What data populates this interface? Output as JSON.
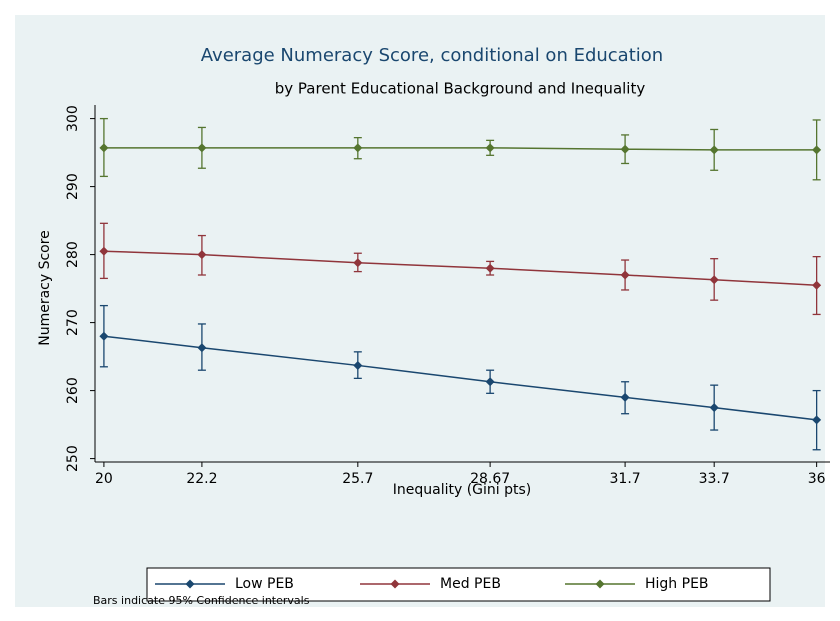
{
  "chart_data": {
    "type": "line",
    "title": "Average Numeracy Score, conditional on Education",
    "subtitle": "by Parent Educational Background and Inequality",
    "x_label": "Inequality (Gini pts)",
    "y_label": "Numeracy Score",
    "note": "Bars indicate 95% Confidence intervals",
    "x": [
      20,
      22.2,
      25.7,
      28.67,
      31.7,
      33.7,
      36
    ],
    "xlim": [
      19.8,
      36.3
    ],
    "xticks": [
      20,
      22.2,
      25.7,
      28.67,
      31.7,
      33.7,
      36
    ],
    "ylim": [
      249.5,
      302
    ],
    "yticks": [
      250,
      260,
      270,
      280,
      290,
      300
    ],
    "grid": false,
    "series": [
      {
        "name": "Low PEB",
        "color": "#1a476f",
        "values": [
          268,
          266.3,
          263.7,
          261.3,
          259,
          257.5,
          255.7
        ],
        "ci_low": [
          263.5,
          263,
          261.8,
          259.6,
          256.6,
          254.2,
          251.3
        ],
        "ci_high": [
          272.5,
          269.8,
          265.7,
          263,
          261.3,
          260.8,
          260
        ]
      },
      {
        "name": "Med PEB",
        "color": "#90353b",
        "values": [
          280.5,
          280,
          278.8,
          278,
          277,
          276.3,
          275.5
        ],
        "ci_low": [
          276.5,
          277,
          277.5,
          277,
          274.8,
          273.3,
          271.2
        ],
        "ci_high": [
          284.6,
          282.8,
          280.2,
          279,
          279.2,
          279.4,
          279.7
        ]
      },
      {
        "name": "High PEB",
        "color": "#55752f",
        "values": [
          295.7,
          295.7,
          295.7,
          295.7,
          295.5,
          295.4,
          295.4
        ],
        "ci_low": [
          291.5,
          292.7,
          294.1,
          294.6,
          293.4,
          292.4,
          291
        ],
        "ci_high": [
          300,
          298.7,
          297.2,
          296.8,
          297.6,
          298.4,
          299.8
        ]
      }
    ]
  }
}
